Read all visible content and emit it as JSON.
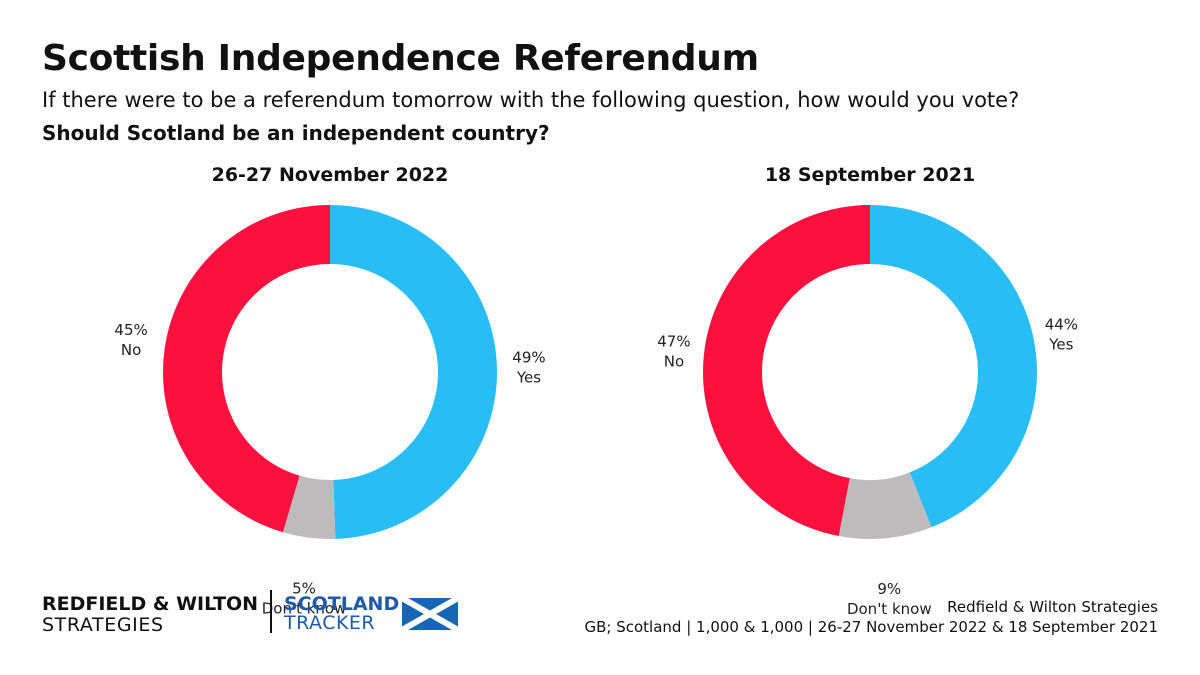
{
  "header": {
    "title": "Scottish Independence Referendum",
    "subtitle": "If there were to be a referendum tomorrow with the following question, how would you vote?",
    "question": "Should Scotland be an independent country?"
  },
  "chart_data": [
    {
      "type": "pie",
      "title": "26-27 November 2022",
      "categories": [
        "Yes",
        "Don't know",
        "No"
      ],
      "values": [
        49,
        5,
        45
      ],
      "labels": [
        "49%",
        "5%",
        "45%"
      ],
      "colors": [
        "#29bdf6",
        "#bdbbbb",
        "#fb113d"
      ],
      "style": "donut"
    },
    {
      "type": "pie",
      "title": "18 September 2021",
      "categories": [
        "Yes",
        "Don't know",
        "No"
      ],
      "values": [
        44,
        9,
        47
      ],
      "labels": [
        "44%",
        "9%",
        "47%"
      ],
      "colors": [
        "#29bdf6",
        "#bdbbbb",
        "#fb113d"
      ],
      "style": "donut"
    }
  ],
  "footer": {
    "brand_name": "REDFIELD & WILTON",
    "brand_sub": "STRATEGIES",
    "tracker_line1": "SCOTLAND",
    "tracker_line2": "TRACKER",
    "flag_icon": "scotland-flag-icon",
    "source_line1": "Redfield & Wilton Strategies",
    "source_line2": "GB; Scotland | 1,000 & 1,000 | 26-27 November 2022 & 18 September 2021"
  },
  "colors": {
    "yes": "#29bdf6",
    "no": "#fb113d",
    "dont_know": "#bdbbbb",
    "brand_blue": "#1e5aa8",
    "flag_blue": "#1565b8"
  }
}
